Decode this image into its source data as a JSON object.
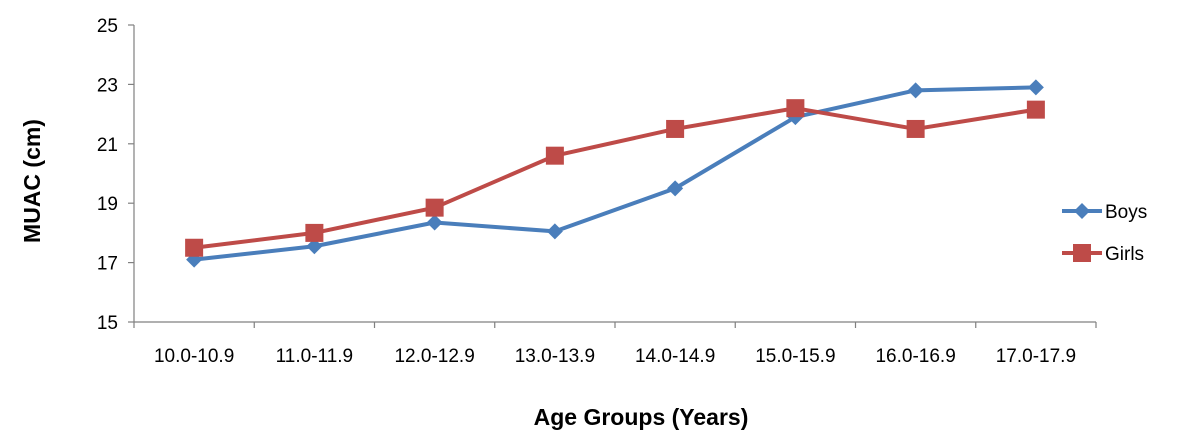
{
  "chart_data": {
    "type": "line",
    "categories": [
      "10.0-10.9",
      "11.0-11.9",
      "12.0-12.9",
      "13.0-13.9",
      "14.0-14.9",
      "15.0-15.9",
      "16.0-16.9",
      "17.0-17.9"
    ],
    "series": [
      {
        "name": "Boys",
        "values": [
          17.1,
          17.55,
          18.35,
          18.05,
          19.5,
          21.9,
          22.8,
          22.9
        ],
        "color": "#4a7ebb",
        "marker": "diamond"
      },
      {
        "name": "Girls",
        "values": [
          17.5,
          18.0,
          18.85,
          20.6,
          21.5,
          22.2,
          21.5,
          22.15
        ],
        "color": "#be4b48",
        "marker": "square"
      }
    ],
    "xlabel": "Age Groups (Years)",
    "ylabel": "MUAC (cm)",
    "ylim": [
      15,
      25
    ],
    "yticks": [
      "15",
      "17",
      "19",
      "21",
      "23",
      "25"
    ],
    "grid": false,
    "legend_position": "right"
  }
}
